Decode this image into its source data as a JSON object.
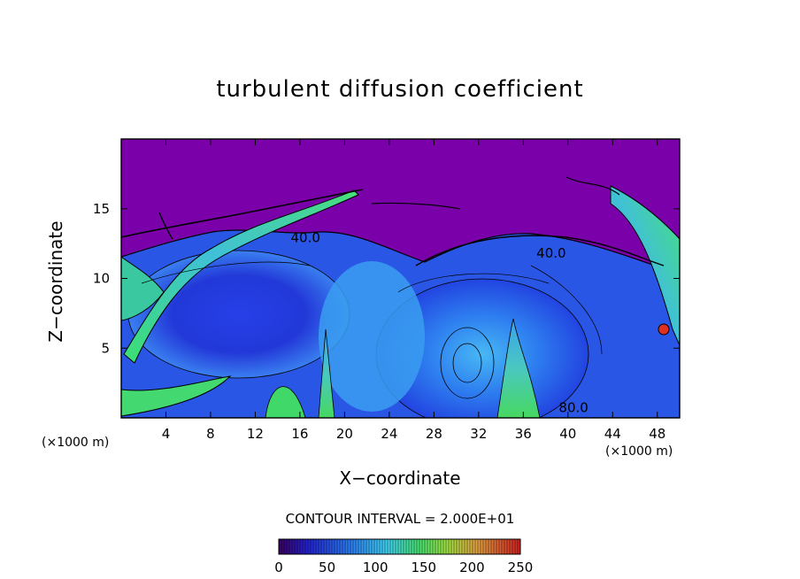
{
  "chart_data": {
    "type": "heatmap",
    "title": "turbulent diffusion coefficient",
    "xlabel": "X−coordinate",
    "ylabel": "Z−coordinate",
    "x_unit_left": "(×1000 m)",
    "x_unit_right": "(×1000 m)",
    "xlim": [
      0,
      50
    ],
    "ylim": [
      0,
      20
    ],
    "x_ticks": [
      "4",
      "8",
      "12",
      "16",
      "20",
      "24",
      "28",
      "32",
      "36",
      "40",
      "44",
      "48"
    ],
    "y_ticks": [
      "5",
      "10",
      "15"
    ],
    "contour_interval_text": "CONTOUR INTERVAL = 2.000E+01",
    "contour_labels": [
      {
        "text": "40.0",
        "x": 16.5,
        "y": 12.6
      },
      {
        "text": "40.0",
        "x": 38.5,
        "y": 11.5
      },
      {
        "text": "80.0",
        "x": 40.5,
        "y": 0.4
      }
    ],
    "colorbar": {
      "range": [
        0,
        250
      ],
      "tick_labels": [
        "0",
        "50",
        "100",
        "150",
        "200",
        "250"
      ]
    },
    "regions": [
      {
        "name": "upper-background",
        "value": 5
      },
      {
        "name": "left-vortex",
        "value": 45
      },
      {
        "name": "right-vortex",
        "value": 50
      },
      {
        "name": "central-updraft",
        "value": 120
      },
      {
        "name": "right-updraft",
        "value": 130
      },
      {
        "name": "left-shear-band",
        "value": 140
      },
      {
        "name": "right-edge-band",
        "value": 170
      }
    ],
    "colors": {
      "background": "#7a00aa",
      "low": "#1e2ee0",
      "mid": "#3ab0f0",
      "high": "#4cdc6a",
      "peak": "#e03020"
    }
  }
}
